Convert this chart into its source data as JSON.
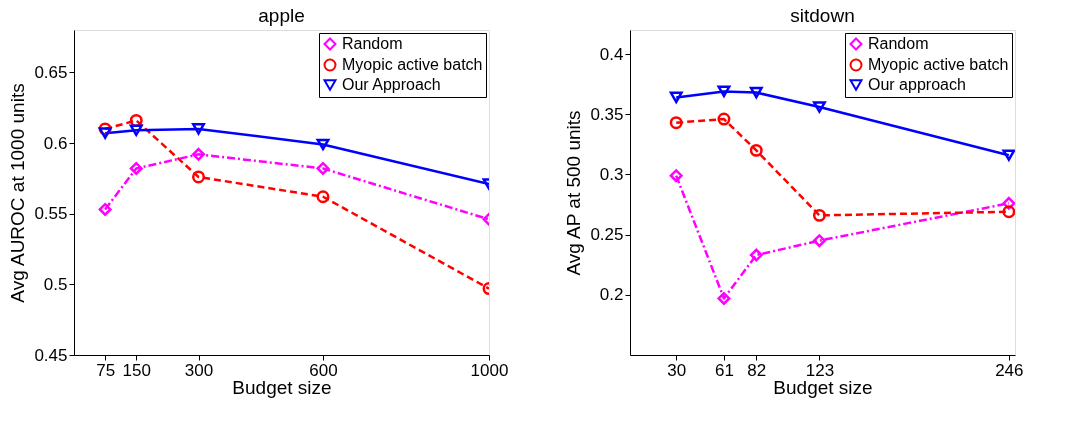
{
  "chart_data": [
    {
      "type": "line",
      "title": "apple",
      "xlabel": "Budget size",
      "ylabel": "Avg AUROC at 1000 units",
      "x": [
        75,
        150,
        300,
        600,
        1000
      ],
      "xlim": [
        0,
        1000
      ],
      "xticks": [
        75,
        150,
        300,
        600,
        1000
      ],
      "ylim": [
        0.45,
        0.68
      ],
      "yticks": [
        0.45,
        0.5,
        0.55,
        0.6,
        0.65
      ],
      "grid": false,
      "legend": "top right",
      "series": [
        {
          "name": "Random",
          "color": "#ff00ff",
          "marker": "diamond",
          "line_style": "dashdot",
          "values": [
            0.553,
            0.582,
            0.592,
            0.582,
            0.546
          ]
        },
        {
          "name": "Myopic active batch",
          "color": "#ff0000",
          "marker": "circle",
          "line_style": "dashed",
          "values": [
            0.61,
            0.616,
            0.576,
            0.562,
            0.497
          ]
        },
        {
          "name": "Our Approach",
          "color": "#0000ff",
          "marker": "triangle-down",
          "line_style": "solid",
          "values": [
            0.607,
            0.609,
            0.61,
            0.599,
            0.571
          ]
        }
      ]
    },
    {
      "type": "line",
      "title": "sitdown",
      "xlabel": "Budget size",
      "ylabel": "Avg AP at 500 units",
      "x": [
        30,
        61,
        82,
        123,
        246
      ],
      "xlim": [
        0,
        250
      ],
      "xticks": [
        30,
        61,
        82,
        123,
        246
      ],
      "ylim": [
        0.15,
        0.42
      ],
      "yticks": [
        0.2,
        0.25,
        0.3,
        0.35,
        0.4
      ],
      "grid": false,
      "legend": "top right",
      "series": [
        {
          "name": "Random",
          "color": "#ff00ff",
          "marker": "diamond",
          "line_style": "dashdot",
          "values": [
            0.299,
            0.197,
            0.233,
            0.245,
            0.276
          ]
        },
        {
          "name": "Myopic active batch",
          "color": "#ff0000",
          "marker": "circle",
          "line_style": "dashed",
          "values": [
            0.343,
            0.346,
            0.32,
            0.266,
            0.269
          ]
        },
        {
          "name": "Our approach",
          "color": "#0000ff",
          "marker": "triangle-down",
          "line_style": "solid",
          "values": [
            0.364,
            0.369,
            0.368,
            0.356,
            0.316
          ]
        }
      ]
    }
  ]
}
